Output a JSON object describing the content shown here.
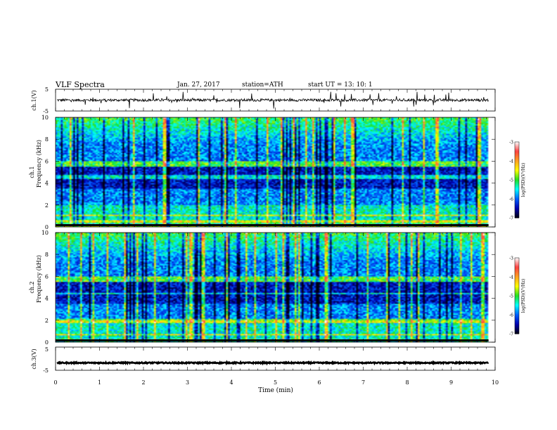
{
  "header": {
    "title": "VLF  Spectra",
    "date": "Jan. 27, 2017",
    "station": "station=ATH",
    "start_ut": "start  UT  =    13: 10: 1"
  },
  "chart_data": [
    {
      "type": "line",
      "ylabel": "ch.1(V)",
      "ylim": [
        -5,
        5
      ],
      "yticks": [
        "5",
        "-5"
      ],
      "xlim": [
        0,
        10
      ],
      "trace": {
        "baseline": 0,
        "noise_amplitude": 0.6,
        "spike_amplitude": 3.5,
        "color": "#000000"
      }
    },
    {
      "type": "heatmap",
      "ylabel": [
        "ch.1",
        "Frequency (kHz)"
      ],
      "ylim": [
        0,
        10
      ],
      "yticks": [
        "0",
        "2",
        "4",
        "6",
        "8",
        "10"
      ],
      "xlim": [
        0,
        10
      ],
      "colorbar": {
        "label": "log(PSD)(V²/Hz)",
        "ticks": [
          "-3",
          "-4",
          "-5",
          "-6",
          "-7"
        ],
        "range": [
          -7,
          -3
        ]
      }
    },
    {
      "type": "heatmap",
      "ylabel": [
        "ch.2",
        "Frequency (kHz)"
      ],
      "ylim": [
        0,
        10
      ],
      "yticks": [
        "0",
        "2",
        "4",
        "6",
        "8",
        "10"
      ],
      "xlim": [
        0,
        10
      ],
      "colorbar": {
        "label": "log(PSD)(V²/Hz)",
        "ticks": [
          "-3",
          "-4",
          "-5",
          "-6",
          "-7"
        ],
        "range": [
          -7,
          -3
        ]
      }
    },
    {
      "type": "line",
      "ylabel": "ch.3(V)",
      "ylim": [
        -5,
        5
      ],
      "yticks": [
        "5",
        "-5"
      ],
      "xlim": [
        0,
        10
      ],
      "trace": {
        "baseline": -1.8,
        "noise_amplitude": 0.25,
        "color": "#000000"
      }
    }
  ],
  "x_axis": {
    "label": "Time  (min)",
    "ticks": [
      "0",
      "1",
      "2",
      "3",
      "4",
      "5",
      "6",
      "7",
      "8",
      "9",
      "10"
    ],
    "data_end_min": 9.85
  },
  "colormap": [
    "#ffffff",
    "#ff4040",
    "#ffa020",
    "#ffff00",
    "#20e020",
    "#00ffff",
    "#0060ff",
    "#0000b0",
    "#000010"
  ]
}
